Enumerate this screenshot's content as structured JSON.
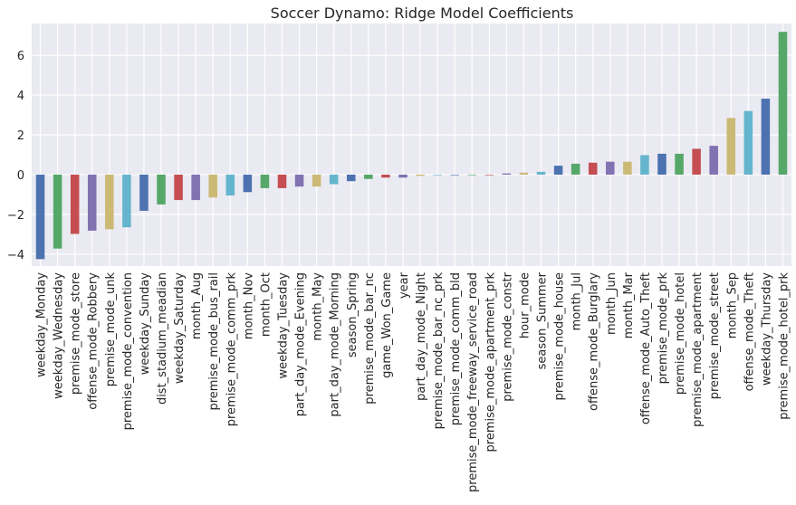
{
  "chart_data": {
    "type": "bar",
    "title": "Soccer Dynamo: Ridge Model Coefficients",
    "xlabel": "",
    "ylabel": "",
    "ylim": [
      -4.6,
      7.6
    ],
    "yticks": [
      -4,
      -2,
      0,
      2,
      4,
      6
    ],
    "grid": true,
    "background": "#eaeaf2",
    "gridColor": "#ffffff",
    "palette": [
      "#4c72b0",
      "#55a868",
      "#c44e52",
      "#8172b2",
      "#ccb974",
      "#64b5cd"
    ],
    "categories": [
      "weekday_Monday",
      "weekday_Wednesday",
      "premise_mode_store",
      "offense_mode_Robbery",
      "premise_mode_unk",
      "premise_mode_convention",
      "weekday_Sunday",
      "dist_stadium_meadian",
      "weekday_Saturday",
      "month_Aug",
      "premise_mode_bus_rail",
      "premise_mode_comm_prk",
      "month_Nov",
      "month_Oct",
      "weekday_Tuesday",
      "part_day_mode_Evening",
      "month_May",
      "part_day_mode_Morning",
      "season_Spring",
      "premise_mode_bar_nc",
      "game_Won_Game",
      "year",
      "part_day_mode_Night",
      "premise_mode_bar_nc_prk",
      "premise_mode_comm_bld",
      "premise_mode_freeway_service_road",
      "premise_mode_apartment_prk",
      "premise_mode_constr",
      "hour_mode",
      "season_Summer",
      "premise_mode_house",
      "month_Jul",
      "offense_mode_Burglary",
      "month_Jun",
      "month_Mar",
      "offense_mode_Auto_Theft",
      "premise_mode_prk",
      "premise_mode_hotel",
      "premise_mode_apartment",
      "premise_mode_street",
      "month_Sep",
      "offense_mode_Theft",
      "weekday_Thursday",
      "premise_mode_hotel_prk"
    ],
    "values": [
      -4.25,
      -3.72,
      -2.98,
      -2.82,
      -2.75,
      -2.65,
      -1.82,
      -1.5,
      -1.28,
      -1.28,
      -1.15,
      -1.05,
      -0.88,
      -0.68,
      -0.68,
      -0.6,
      -0.6,
      -0.48,
      -0.33,
      -0.22,
      -0.15,
      -0.15,
      -0.06,
      -0.01,
      -0.01,
      -0.01,
      -0.01,
      0.06,
      0.1,
      0.14,
      0.45,
      0.55,
      0.6,
      0.65,
      0.65,
      0.98,
      1.05,
      1.05,
      1.3,
      1.45,
      2.85,
      3.2,
      3.82,
      7.18
    ]
  }
}
